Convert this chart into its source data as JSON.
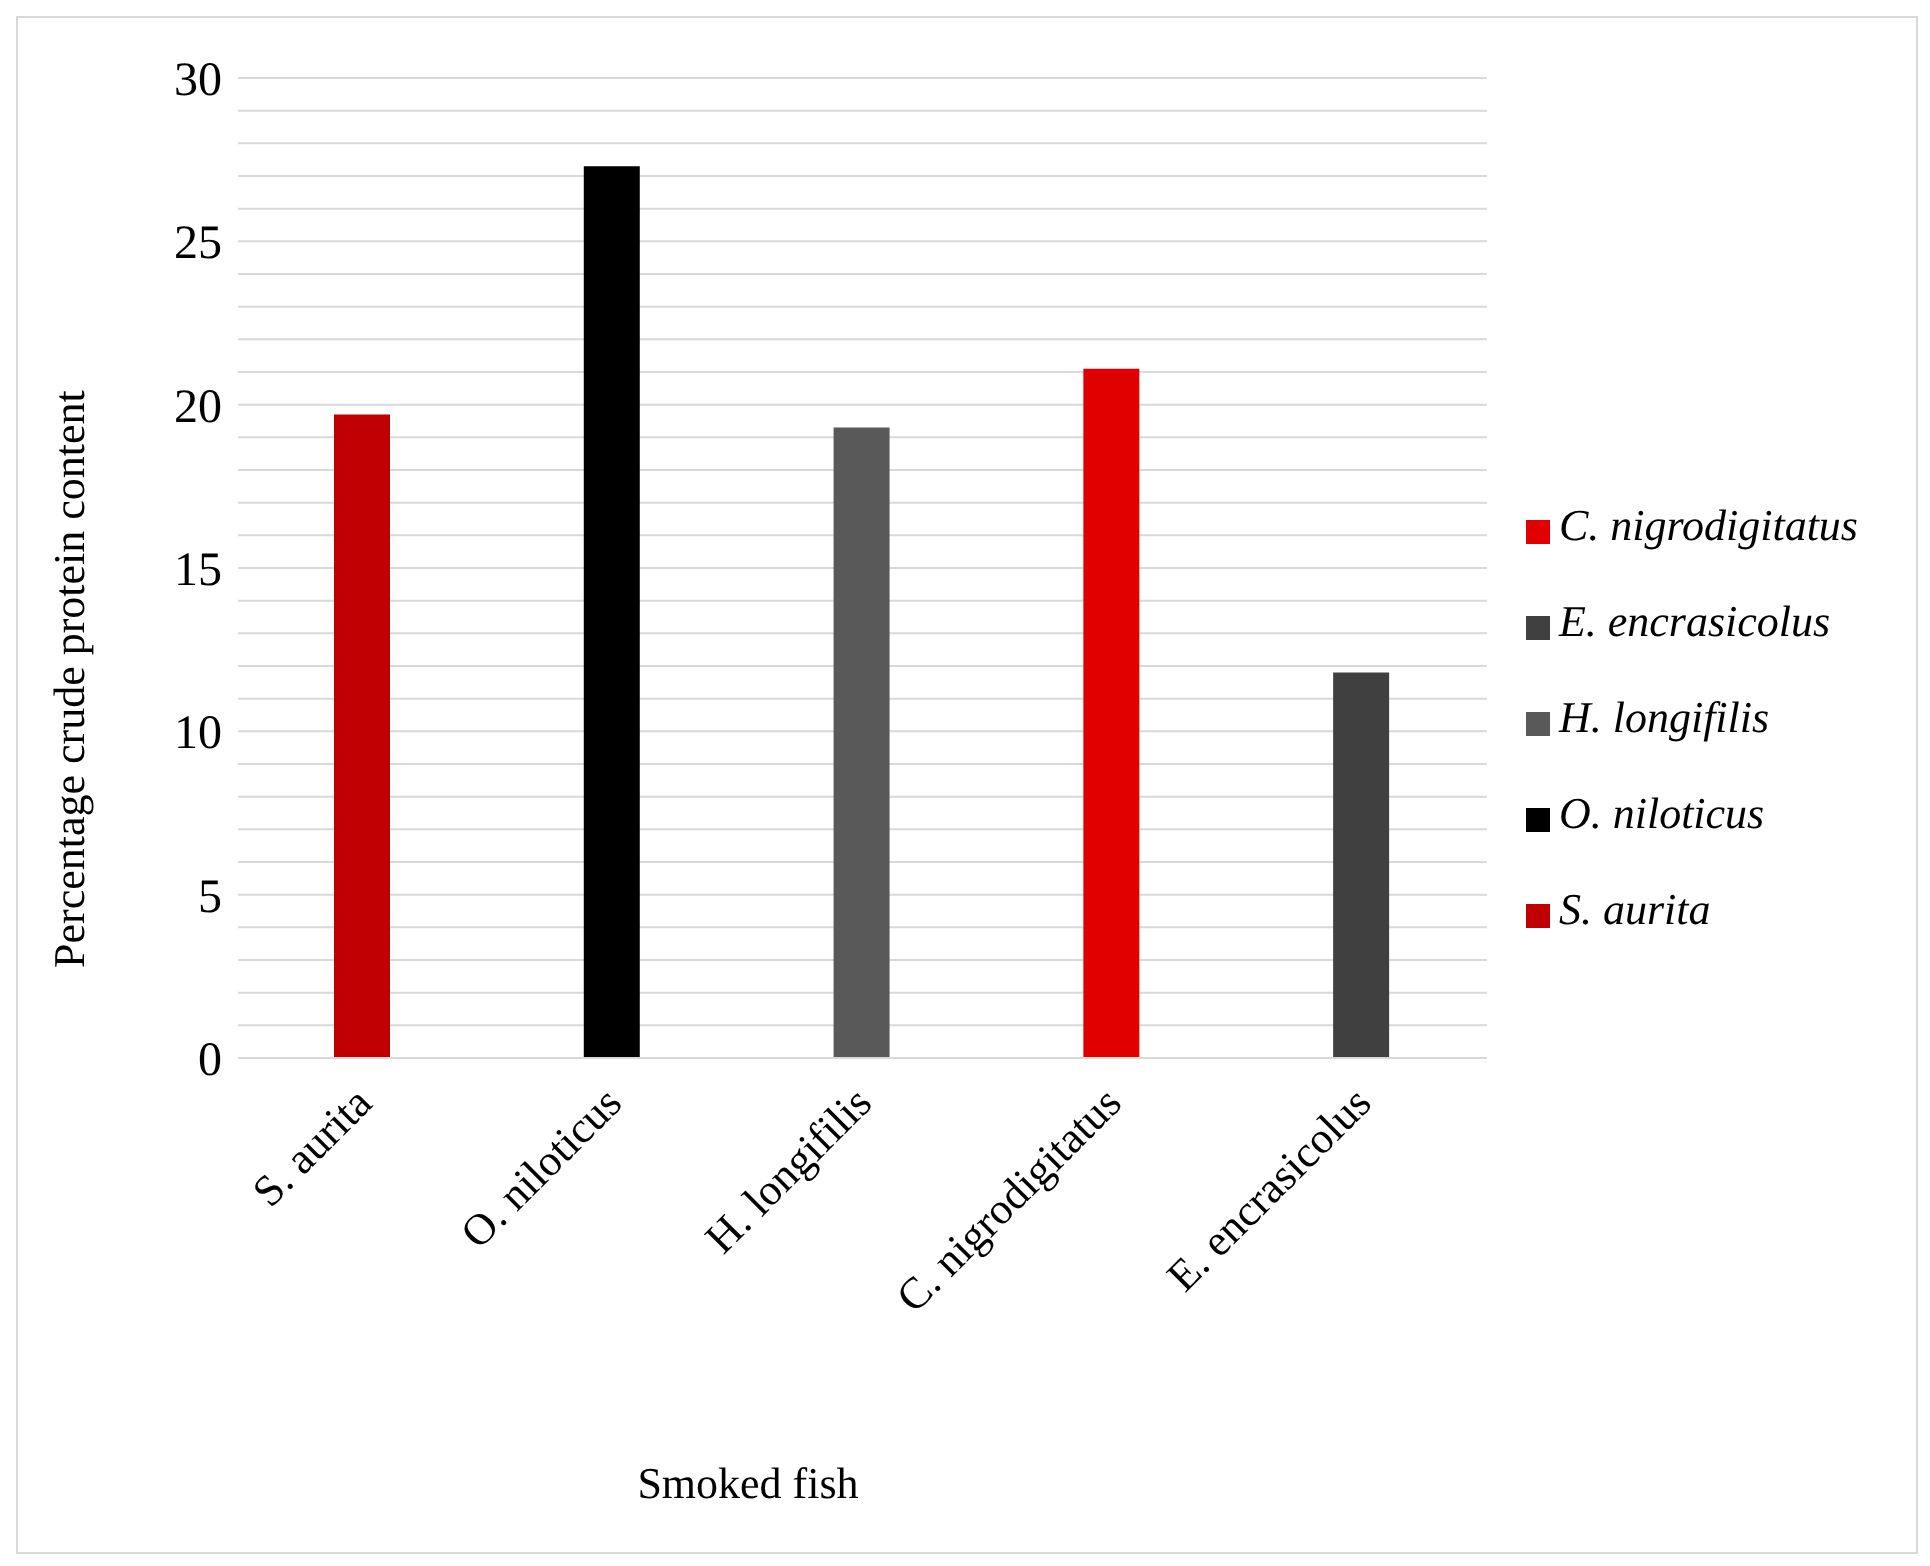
{
  "chart_data": {
    "type": "bar",
    "xlabel": "Smoked fish",
    "ylabel": "Percentage crude protein content",
    "categories": [
      "S. aurita",
      "O. niloticus",
      "H. longifilis",
      "C. nigrodigitatus",
      "E. encrasicolus"
    ],
    "series": [
      {
        "name": "S. aurita",
        "color": "#c00000",
        "values": [
          19.7,
          null,
          null,
          null,
          null
        ]
      },
      {
        "name": "O. niloticus",
        "color": "#000000",
        "values": [
          null,
          27.3,
          null,
          null,
          null
        ]
      },
      {
        "name": "H. longifilis",
        "color": "#595959",
        "values": [
          null,
          null,
          19.3,
          null,
          null
        ]
      },
      {
        "name": "C. nigrodigitatus",
        "color": "#e00000",
        "values": [
          null,
          null,
          null,
          21.1,
          null
        ]
      },
      {
        "name": "E. encrasicolus",
        "color": "#404040",
        "values": [
          null,
          null,
          null,
          null,
          11.8
        ]
      }
    ],
    "stacked": true,
    "ylim": [
      0,
      30
    ],
    "yticks": [
      0,
      {
        "value": 1,
        "label": null
      },
      {
        "value": 2,
        "label": null
      },
      {
        "value": 3,
        "label": null
      },
      {
        "value": 4,
        "label": null
      },
      5,
      {
        "value": 6,
        "label": null
      },
      {
        "value": 7,
        "label": null
      },
      {
        "value": 8,
        "label": null
      },
      {
        "value": 9,
        "label": null
      },
      10,
      {
        "value": 11,
        "label": null
      },
      {
        "value": 12,
        "label": null
      },
      {
        "value": 13,
        "label": null
      },
      {
        "value": 14,
        "label": null
      },
      15,
      {
        "value": 16,
        "label": null
      },
      {
        "value": 17,
        "label": null
      },
      {
        "value": 18,
        "label": null
      },
      {
        "value": 19,
        "label": null
      },
      20,
      {
        "value": 21,
        "label": null
      },
      {
        "value": 22,
        "label": null
      },
      {
        "value": 23,
        "label": null
      },
      {
        "value": 24,
        "label": null
      },
      25,
      {
        "value": 26,
        "label": null
      },
      {
        "value": 27,
        "label": null
      },
      {
        "value": 28,
        "label": null
      },
      {
        "value": 29,
        "label": null
      },
      30
    ],
    "grid": "y",
    "legend": "right"
  }
}
